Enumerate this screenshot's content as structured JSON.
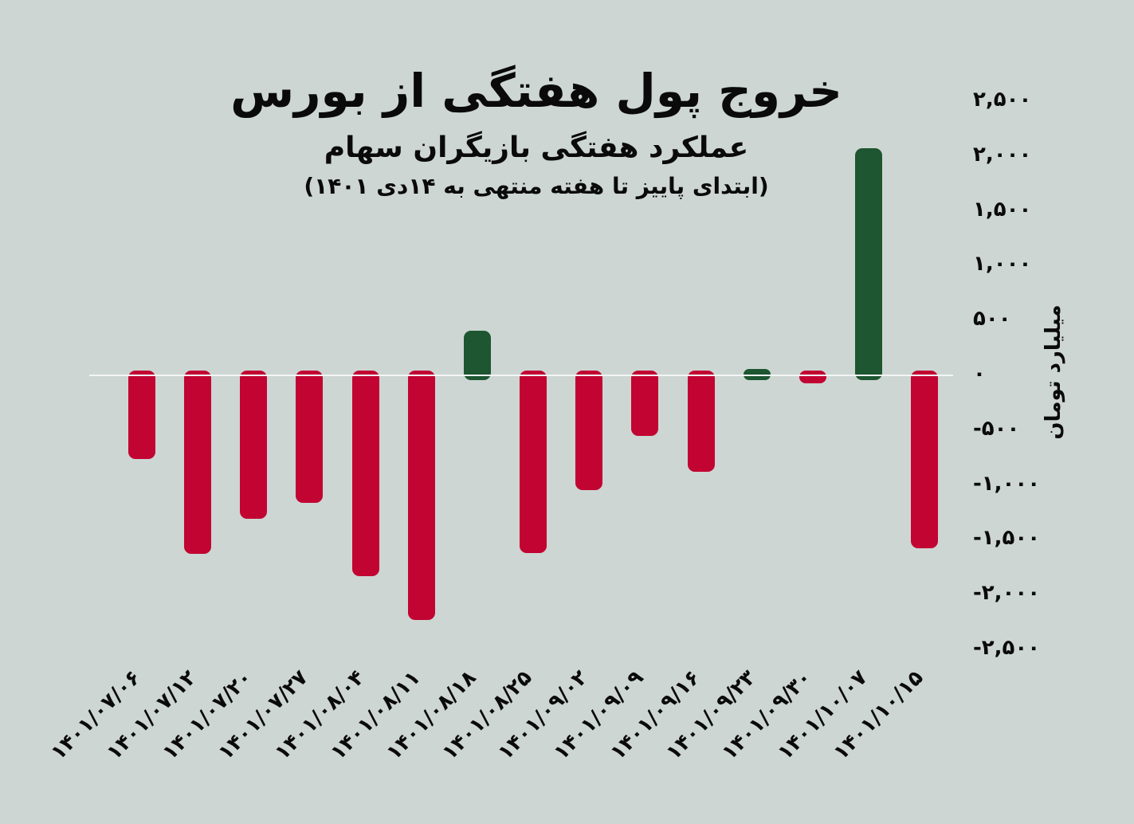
{
  "chart_data": {
    "type": "bar",
    "title": "خروج پول هفتگی از بورس",
    "subtitle": "عملکرد هفتگی بازیگران سهام",
    "note": "(ابتدای پاییز تا هفته منتهی به ۱۴دی ۱۴۰۱)",
    "ylabel": "میلیارد تومان",
    "categories": [
      "۱۴۰۱/۰۷/۰۶",
      "۱۴۰۱/۰۷/۱۲",
      "۱۴۰۱/۰۷/۲۰",
      "۱۴۰۱/۰۷/۲۷",
      "۱۴۰۱/۰۸/۰۴",
      "۱۴۰۱/۰۸/۱۱",
      "۱۴۰۱/۰۸/۱۸",
      "۱۴۰۱/۰۸/۲۵",
      "۱۴۰۱/۰۹/۰۲",
      "۱۴۰۱/۰۹/۰۹",
      "۱۴۰۱/۰۹/۱۶",
      "۱۴۰۱/۰۹/۲۳",
      "۱۴۰۱/۰۹/۳۰",
      "۱۴۰۱/۱۰/۰۷",
      "۱۴۰۱/۱۰/۱۵"
    ],
    "values": [
      -760,
      -1630,
      -1310,
      -1160,
      -1830,
      -2230,
      410,
      -1620,
      -1050,
      -550,
      -880,
      60,
      -75,
      2070,
      -1580
    ],
    "unit": "میلیارد تومان",
    "ylim": [
      -2500,
      2500
    ],
    "ytick_step": 500,
    "yticks": [
      {
        "value": 2500,
        "label": "۲,۵۰۰"
      },
      {
        "value": 2000,
        "label": "۲,۰۰۰"
      },
      {
        "value": 1500,
        "label": "۱,۵۰۰"
      },
      {
        "value": 1000,
        "label": "۱,۰۰۰"
      },
      {
        "value": 500,
        "label": "۵۰۰"
      },
      {
        "value": 0,
        "label": "۰"
      },
      {
        "value": -500,
        "label": "-۵۰۰"
      },
      {
        "value": -1000,
        "label": "-۱,۰۰۰"
      },
      {
        "value": -1500,
        "label": "-۱,۵۰۰"
      },
      {
        "value": -2000,
        "label": "-۲,۰۰۰"
      },
      {
        "value": -2500,
        "label": "-۲,۵۰۰"
      }
    ],
    "grid": false,
    "legend": null,
    "colors": {
      "positive": "#1d5630",
      "negative": "#c20433",
      "background": "#cdd6d2",
      "text": "#0a0a0a",
      "zero_line": "#f2f5f3"
    }
  }
}
